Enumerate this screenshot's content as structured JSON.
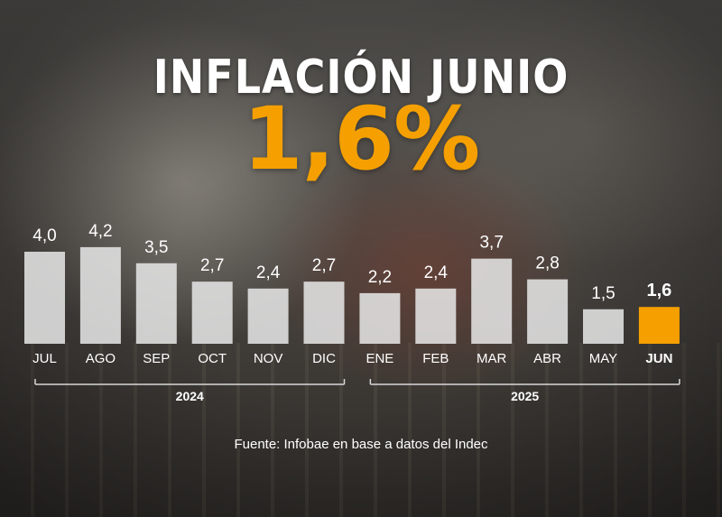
{
  "header": {
    "title": "INFLACIÓN JUNIO",
    "headline_value": "1,6%"
  },
  "chart_data": {
    "type": "bar",
    "categories": [
      "JUL",
      "AGO",
      "SEP",
      "OCT",
      "NOV",
      "DIC",
      "ENE",
      "FEB",
      "MAR",
      "ABR",
      "MAY",
      "JUN"
    ],
    "values": [
      4.0,
      4.2,
      3.5,
      2.7,
      2.4,
      2.7,
      2.2,
      2.4,
      3.7,
      2.8,
      1.5,
      1.6
    ],
    "value_labels": [
      "4,0",
      "4,2",
      "3,5",
      "2,7",
      "2,4",
      "2,7",
      "2,2",
      "2,4",
      "3,7",
      "2,8",
      "1,5",
      "1,6"
    ],
    "highlight_index": 11,
    "year_groups": [
      {
        "label": "2024",
        "from": 0,
        "to": 5
      },
      {
        "label": "2025",
        "from": 6,
        "to": 11
      }
    ],
    "bar_color": "#e4e4e4",
    "highlight_color": "#f5a000",
    "ylim": [
      0,
      4.2
    ],
    "grid": false,
    "legend": "none"
  },
  "footer": {
    "source": "Fuente: Infobae en base a datos del Indec"
  }
}
